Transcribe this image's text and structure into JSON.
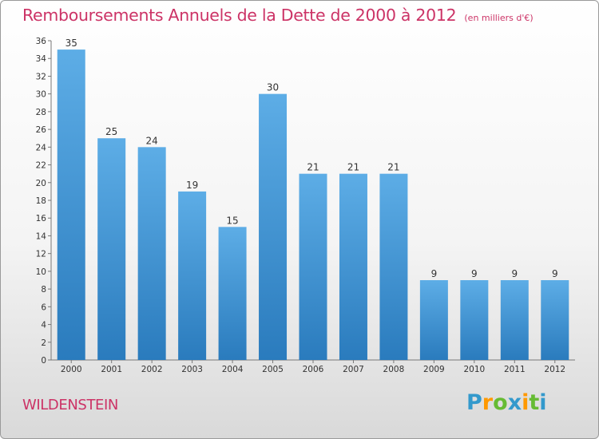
{
  "title": "Remboursements Annuels de la Dette de 2000 à 2012",
  "subtitle": "(en milliers d'€)",
  "commune": "WILDENSTEIN",
  "logo": {
    "text": "Proxiti",
    "letters": [
      {
        "ch": "P",
        "color": "#3399cc"
      },
      {
        "ch": "r",
        "color": "#ff9900"
      },
      {
        "ch": "o",
        "color": "#66bb33"
      },
      {
        "ch": "x",
        "color": "#3399cc"
      },
      {
        "ch": "i",
        "color": "#ff9900"
      },
      {
        "ch": "t",
        "color": "#66bb33"
      },
      {
        "ch": "i",
        "color": "#3399cc"
      }
    ]
  },
  "colors": {
    "bar_top": "#5dade6",
    "bar_bottom": "#2a7bbd",
    "title": "#cc3366"
  },
  "chart_data": {
    "type": "bar",
    "title": "Remboursements Annuels de la Dette de 2000 à 2012",
    "categories": [
      "2000",
      "2001",
      "2002",
      "2003",
      "2004",
      "2005",
      "2006",
      "2007",
      "2008",
      "2009",
      "2010",
      "2011",
      "2012"
    ],
    "values": [
      35,
      25,
      24,
      19,
      15,
      30,
      21,
      21,
      21,
      9,
      9,
      9,
      9
    ],
    "ylim": [
      0,
      36
    ],
    "yticks": [
      0,
      2,
      4,
      6,
      8,
      10,
      12,
      14,
      16,
      18,
      20,
      22,
      24,
      26,
      28,
      30,
      32,
      34,
      36
    ],
    "xlabel": "",
    "ylabel": "",
    "grid": false
  }
}
